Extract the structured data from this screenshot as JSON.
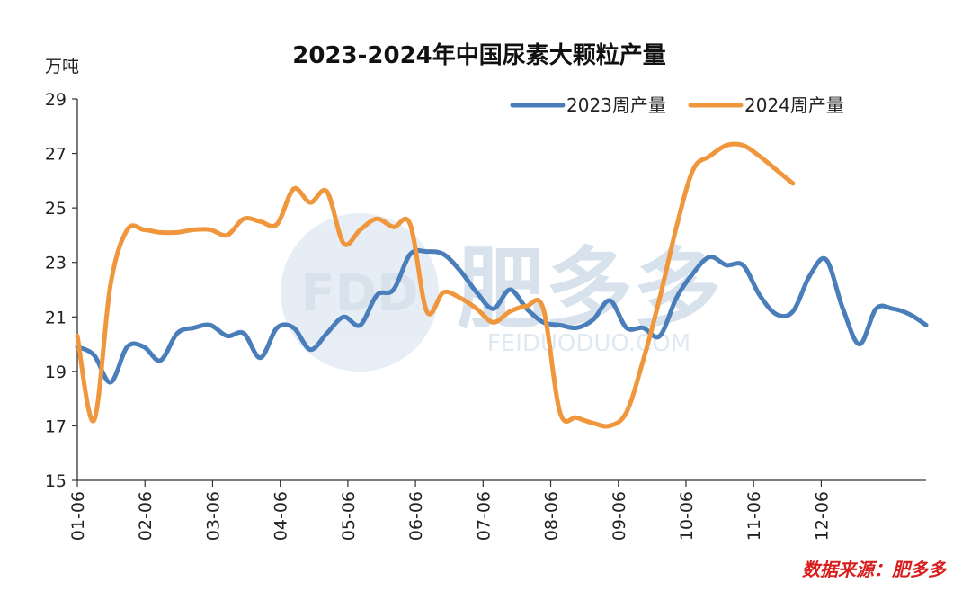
{
  "chart_data": {
    "type": "line",
    "title": "2023-2024年中国尿素大颗粒产量",
    "ylabel": "万吨",
    "ylim": [
      15,
      29
    ],
    "yticks": [
      15,
      17,
      19,
      21,
      23,
      25,
      27,
      29
    ],
    "xticks": [
      "01-06",
      "02-06",
      "03-06",
      "04-06",
      "05-06",
      "06-06",
      "07-06",
      "08-06",
      "09-06",
      "10-06",
      "11-06",
      "12-06"
    ],
    "xlim_weeks": [
      0,
      51
    ],
    "grid": false,
    "legend": "top-right",
    "series": [
      {
        "name": "2023周产量",
        "color": "#4a7ebb",
        "week": [
          0,
          1,
          2,
          3,
          4,
          5,
          6,
          7,
          8,
          9,
          10,
          11,
          12,
          13,
          14,
          15,
          16,
          17,
          18,
          19,
          20,
          21,
          22,
          23,
          24,
          25,
          26,
          27,
          28,
          29,
          30,
          31,
          32,
          33,
          34,
          35,
          36,
          37,
          38,
          39,
          40,
          41,
          42,
          43,
          44,
          45,
          46,
          47,
          48,
          49,
          50,
          51
        ],
        "values": [
          19.9,
          19.6,
          18.6,
          19.9,
          19.9,
          19.4,
          20.4,
          20.6,
          20.7,
          20.3,
          20.4,
          19.5,
          20.6,
          20.6,
          19.8,
          20.4,
          21.0,
          20.7,
          21.8,
          22.0,
          23.3,
          23.4,
          23.3,
          22.7,
          21.9,
          21.3,
          22.0,
          21.3,
          20.8,
          20.7,
          20.6,
          20.9,
          21.6,
          20.6,
          20.6,
          20.3,
          21.7,
          22.6,
          23.2,
          22.9,
          22.9,
          21.8,
          21.1,
          21.2,
          22.5,
          23.1,
          21.3,
          20.0,
          21.3,
          21.3,
          21.1,
          20.7
        ]
      },
      {
        "name": "2024周产量",
        "color": "#f0963c",
        "week": [
          0,
          1,
          2,
          3,
          4,
          5,
          6,
          7,
          8,
          9,
          10,
          11,
          12,
          13,
          14,
          15,
          16,
          17,
          18,
          19,
          20,
          21,
          22,
          23,
          24,
          25,
          26,
          27,
          28,
          29,
          30,
          31,
          32,
          33,
          34,
          35,
          36,
          37,
          38,
          39,
          40,
          41,
          42,
          43
        ],
        "values": [
          20.3,
          17.2,
          22.2,
          24.2,
          24.2,
          24.1,
          24.1,
          24.2,
          24.2,
          24.0,
          24.6,
          24.5,
          24.4,
          25.7,
          25.2,
          25.6,
          23.7,
          24.2,
          24.6,
          24.3,
          24.4,
          21.2,
          21.9,
          21.7,
          21.3,
          20.8,
          21.2,
          21.4,
          21.3,
          17.5,
          17.3,
          17.1,
          17.0,
          17.5,
          19.4,
          21.7,
          24.3,
          26.4,
          26.9,
          27.3,
          27.3,
          26.9,
          26.4,
          25.9
        ]
      }
    ],
    "source": "数据来源：肥多多"
  },
  "watermark": {
    "logo": "FDD",
    "brand": "肥多多",
    "site": "FEIDUODUO.COM"
  }
}
